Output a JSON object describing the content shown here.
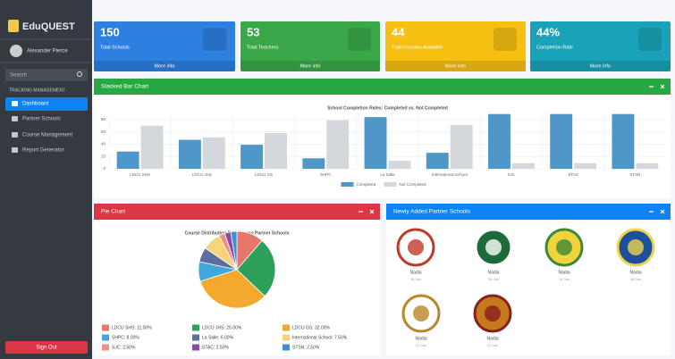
{
  "brand": "EduQUEST",
  "user": "Alexander Pierce",
  "search": "Search",
  "nav_header": "TRACKING MANAGEMENT",
  "nav": [
    "Dashboard",
    "Partner Schools",
    "Course Management",
    "Report Generator"
  ],
  "sign_out": "Sign Out",
  "stats": [
    {
      "value": "150",
      "label": "Total Schools",
      "link": "More info",
      "color": "#2d7fe0"
    },
    {
      "value": "53",
      "label": "Total Teachers",
      "link": "More info",
      "color": "#3aa84a"
    },
    {
      "value": "44",
      "label": "Total Courses Available",
      "link": "More info",
      "color": "#f5c012"
    },
    {
      "value": "44%",
      "label": "Completion Rate",
      "link": "More info",
      "color": "#1aa3b8"
    }
  ],
  "panels": {
    "bar": "Stacked Bar Chart",
    "pie": "Pie Chart",
    "schools": "Newly Added Partner Schools"
  },
  "schools": [
    {
      "name": "Nadia",
      "date": "16 Jan"
    },
    {
      "name": "Nadia",
      "date": "16 Jan"
    },
    {
      "name": "Nadia",
      "date": "14 Jan"
    },
    {
      "name": "Nadia",
      "date": "18 Jan"
    },
    {
      "name": "Nadia",
      "date": "17 Jan"
    },
    {
      "name": "Nadia",
      "date": "17 Jan"
    }
  ],
  "chart_data": [
    {
      "type": "bar",
      "title": "School Completion Rates: Completed vs. Not Completed",
      "categories": [
        "LDCU SHS",
        "LDCU JHS",
        "LDCU GS",
        "SHPC",
        "La Salle",
        "International School",
        "SJC",
        "STAC",
        "STSN"
      ],
      "series": [
        {
          "name": "Completed",
          "color": "#4f97c9",
          "values": [
            28,
            47,
            39,
            17,
            84,
            26,
            89,
            89,
            89
          ]
        },
        {
          "name": "Not Completed",
          "color": "#d4d7dc",
          "values": [
            70,
            51,
            58,
            79,
            13,
            71,
            9,
            9,
            9
          ]
        }
      ],
      "ylim": [
        0,
        90
      ],
      "yticks": [
        0,
        20,
        40,
        60,
        80
      ],
      "grid": true
    },
    {
      "type": "pie",
      "title": "Course Distribution Rate Across Partner Schools",
      "categories": [
        "LDCU SHS: 11.00%",
        "LDCU JHS: 25.00%",
        "LDCU GS: 32.00%",
        "SHPC: 8.00%",
        "La Salle: 6.00%",
        "International School: 7.50%",
        "SJC: 2.50%",
        "STAC: 2.50%",
        "STSN: 2.50%"
      ],
      "values": [
        11,
        25,
        32,
        8,
        6,
        7.5,
        2.5,
        2.5,
        2.5
      ],
      "colors": [
        "#e8776b",
        "#2fa05c",
        "#f4a82e",
        "#3fa7dc",
        "#5d6e9e",
        "#f6d47c",
        "#f0907f",
        "#8e4aa8",
        "#3a8fd6"
      ]
    }
  ]
}
